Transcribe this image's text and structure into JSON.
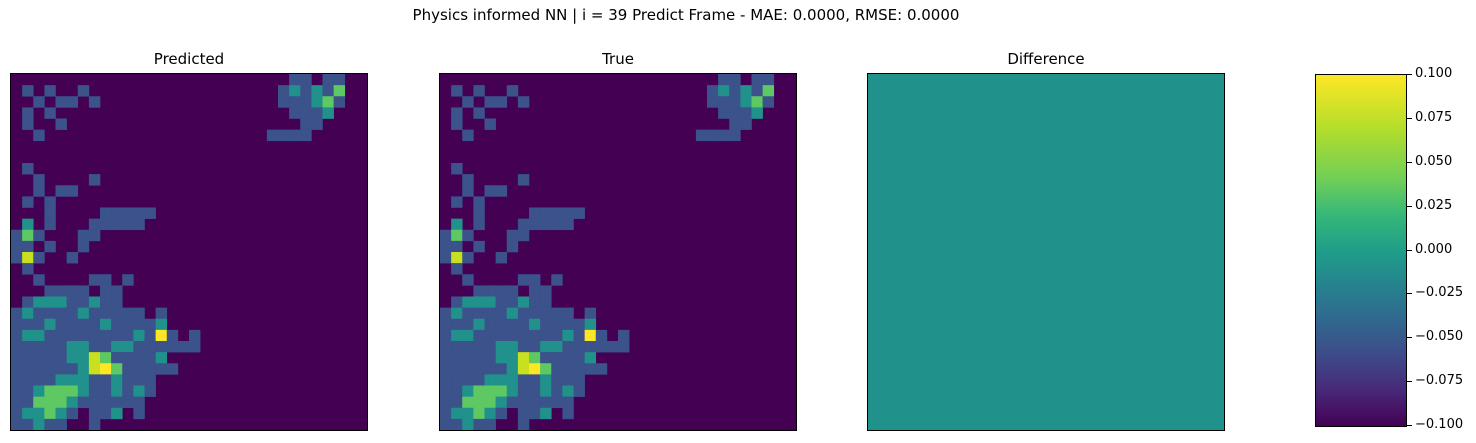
{
  "chart_data": {
    "type": "heatmap",
    "title": "Physics informed NN | i = 39 Predict Frame - MAE: 0.0000, RMSE: 0.0000",
    "panels": [
      {
        "title": "Predicted",
        "source": "field"
      },
      {
        "title": "True",
        "source": "field"
      },
      {
        "title": "Difference",
        "constant_value": 0.0
      }
    ],
    "grid_size": [
      32,
      32
    ],
    "colormap": "viridis",
    "colorbar": {
      "vmin": -0.1,
      "vmax": 0.1,
      "ticks": [
        "0.100",
        "0.075",
        "0.050",
        "0.025",
        "0.000",
        "−0.025",
        "−0.050",
        "−0.075",
        "−0.100"
      ]
    },
    "field_rows": [
      "00000000000000000000000001101100",
      "01010010000000000000000012121300",
      "00101101000000000000000011123100",
      "01010000000000000000000001112000",
      "01001000000000000000000000110000",
      "00100000000000000000000111100000",
      "00000000000000000000000000000000",
      "00000000000000000000000000000000",
      "01000000000000000000000000000000",
      "00100001000000000000000000000000",
      "00101100000000000000000000000000",
      "01010000000000000000000000000000",
      "00010000111110000000000000000000",
      "02010001111100000000000000000000",
      "13100011000000000000000000000000",
      "11010010000000000000000000000000",
      "14100100000000000000000000000000",
      "01000000000000000000000000000000",
      "00100001101000000000000000000000",
      "00011110110000000000000000000000",
      "01222112110000000000000000000000",
      "12111121111101000000000000000000",
      "11121111211112000000000000000000",
      "12211111111215101000000000000000",
      "11111221122111111000000000000000",
      "11111224311112000000000000000000",
      "11111124531111100000000000000000",
      "11112221121110000000000000000000",
      "11233321121210000000000000000000",
      "11333211111100000000000000000000",
      "12232101120100000000000000000000",
      "11211001000000000000000000000000"
    ]
  }
}
